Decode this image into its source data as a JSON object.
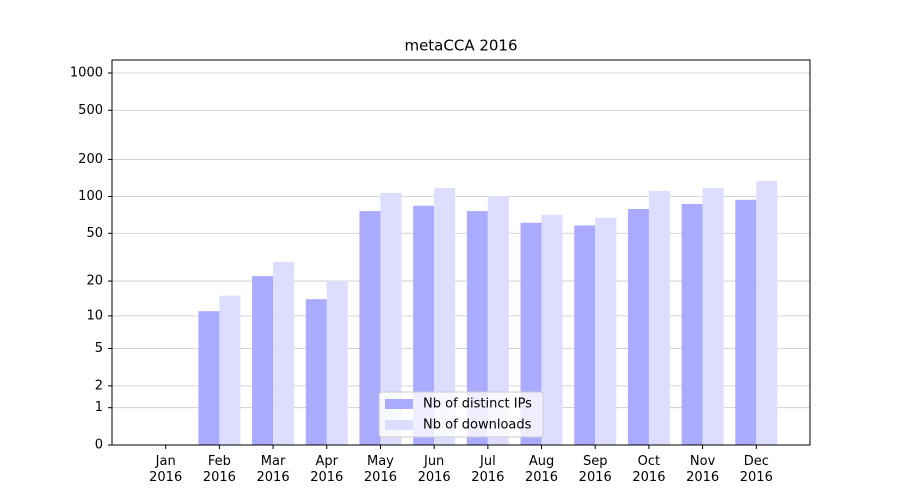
{
  "chart_data": {
    "type": "bar",
    "title": "metaCCA 2016",
    "categories": [
      "Jan\n2016",
      "Feb\n2016",
      "Mar\n2016",
      "Apr\n2016",
      "May\n2016",
      "Jun\n2016",
      "Jul\n2016",
      "Aug\n2016",
      "Sep\n2016",
      "Oct\n2016",
      "Nov\n2016",
      "Dec\n2016"
    ],
    "series": [
      {
        "name": "Nb of distinct IPs",
        "color": "#aaaaff",
        "values": [
          0,
          11,
          22,
          14,
          76,
          84,
          76,
          61,
          58,
          79,
          87,
          94
        ]
      },
      {
        "name": "Nb of downloads",
        "color": "#ddddff",
        "values": [
          0,
          15,
          29,
          20,
          107,
          117,
          101,
          71,
          67,
          111,
          117,
          134
        ]
      }
    ],
    "yscale": "log1p",
    "ylim": [
      0,
      1273
    ],
    "yticks": [
      0,
      1,
      2,
      5,
      10,
      20,
      50,
      100,
      200,
      500,
      1000
    ],
    "grid": true,
    "legend": "lower center"
  }
}
